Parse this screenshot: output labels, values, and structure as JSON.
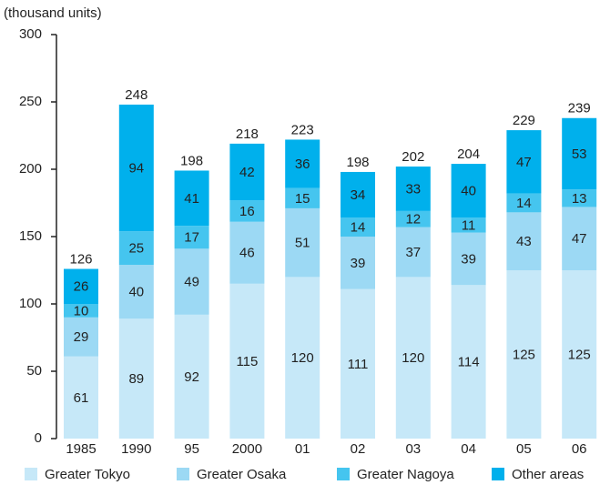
{
  "chart_data": {
    "type": "stacked_bar",
    "y_axis_label": "(thousand units)",
    "categories": [
      "1985",
      "1990",
      "95",
      "2000",
      "01",
      "02",
      "03",
      "04",
      "05",
      "06"
    ],
    "series": [
      {
        "name": "Greater Tokyo",
        "color": "#c6e8f8",
        "values": [
          61,
          89,
          92,
          115,
          120,
          111,
          120,
          114,
          125,
          125
        ]
      },
      {
        "name": "Greater Osaka",
        "color": "#9cd9f4",
        "values": [
          29,
          40,
          49,
          46,
          51,
          39,
          37,
          39,
          43,
          47
        ]
      },
      {
        "name": "Greater Nagoya",
        "color": "#45c5ef",
        "values": [
          10,
          25,
          17,
          16,
          15,
          14,
          12,
          11,
          14,
          13
        ]
      },
      {
        "name": "Other areas",
        "color": "#00b0ec",
        "values": [
          26,
          94,
          41,
          42,
          36,
          34,
          33,
          40,
          47,
          53
        ]
      }
    ],
    "totals": [
      126,
      248,
      198,
      218,
      223,
      198,
      202,
      204,
      229,
      239
    ],
    "ylim": [
      0,
      300
    ],
    "yticks": [
      0,
      50,
      100,
      150,
      200,
      250,
      300
    ]
  }
}
